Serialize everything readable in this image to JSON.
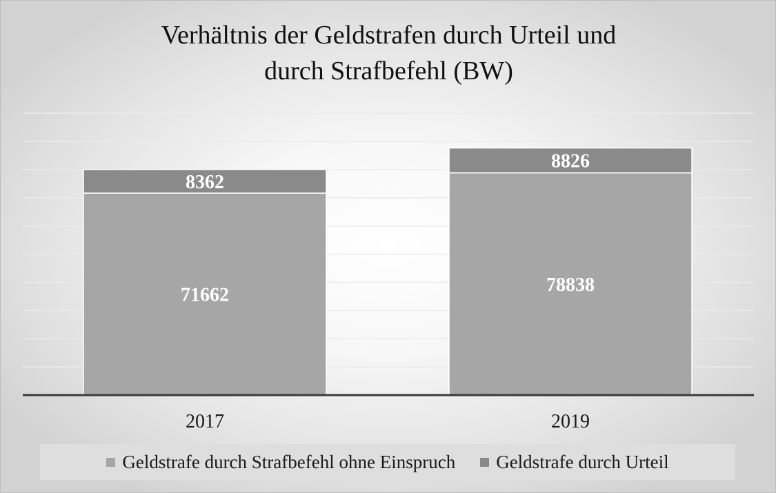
{
  "chart_data": {
    "type": "bar",
    "stacked": true,
    "title": "Verhältnis der Geldstrafen durch Urteil und durch Strafbefehl (BW)",
    "title_lines": [
      "Verhältnis der Geldstrafen durch Urteil und",
      "durch Strafbefehl (BW)"
    ],
    "categories": [
      "2017",
      "2019"
    ],
    "series": [
      {
        "name": "Geldstrafe durch Strafbefehl ohne Einspruch",
        "values": [
          71662,
          78838
        ],
        "color": "#a6a6a6"
      },
      {
        "name": "Geldstrafe durch Urteil",
        "values": [
          8362,
          8826
        ],
        "color": "#8a8a8a"
      }
    ],
    "ylim": [
      0,
      100000
    ],
    "grid": true,
    "legend_position": "bottom",
    "data_label_color": "#ffffff"
  }
}
